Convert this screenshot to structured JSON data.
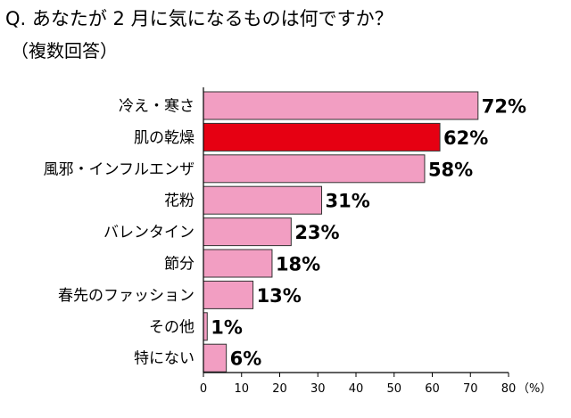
{
  "title": "Q. あなたが 2 月に気になるものは何ですか？",
  "subtitle": "（複数回答）",
  "chart_data": {
    "type": "bar",
    "orientation": "horizontal",
    "categories": [
      "冷え・寒さ",
      "肌の乾燥",
      "風邪・インフルエンザ",
      "花粉",
      "バレンタイン",
      "節分",
      "春先のファッション",
      "その他",
      "特にない"
    ],
    "values": [
      72,
      62,
      58,
      31,
      23,
      18,
      13,
      1,
      6
    ],
    "value_labels": [
      "72%",
      "62%",
      "58%",
      "31%",
      "23%",
      "18%",
      "13%",
      "1%",
      "6%"
    ],
    "highlight_index": 1,
    "colors": {
      "bar": "#f29ec2",
      "highlight": "#e60012",
      "outline": "#333333"
    },
    "xlim": [
      0,
      80
    ],
    "xticks": [
      0,
      10,
      20,
      30,
      40,
      50,
      60,
      70,
      80
    ],
    "xunit": "（%）",
    "grid": false
  }
}
